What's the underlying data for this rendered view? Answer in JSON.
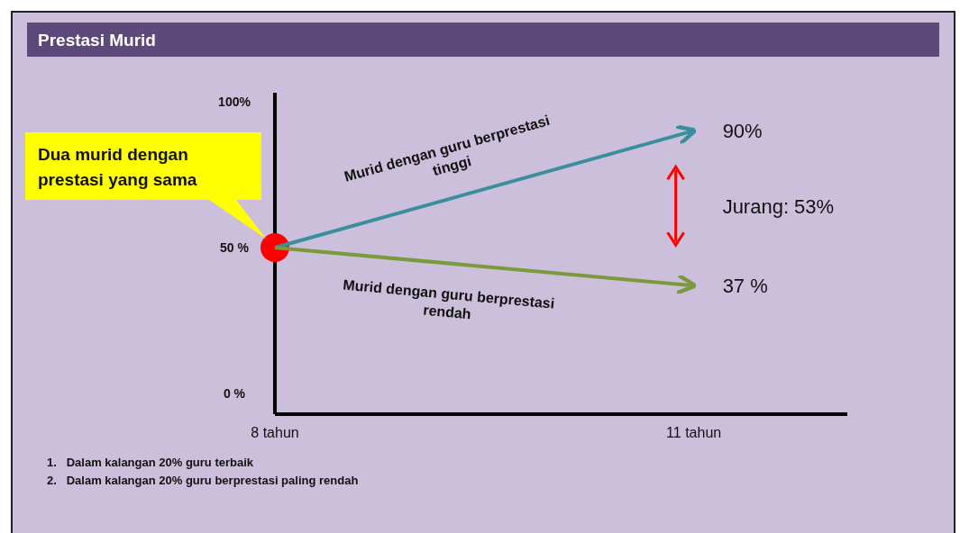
{
  "chart_data": {
    "type": "line",
    "title": "Prestasi Murid",
    "x": [
      8,
      11
    ],
    "xlim": [
      8,
      12.1
    ],
    "xticks": [
      {
        "value": 8,
        "label": "8 tahun"
      },
      {
        "value": 11,
        "label": "11 tahun"
      }
    ],
    "ylim": [
      -7,
      103
    ],
    "yticks": [
      {
        "value": 0,
        "label": "0 %"
      },
      {
        "value": 50,
        "label": "50 %"
      },
      {
        "value": 100,
        "label": "100%"
      }
    ],
    "grid": false,
    "series": [
      {
        "name": "Murid dengan guru berprestasi tinggi",
        "color": "#3a8f9e",
        "values": [
          50,
          90
        ],
        "value_labels": [
          null,
          "90%"
        ]
      },
      {
        "name": "Murid dengan guru berprestasi rendah",
        "color": "#7a9a3c",
        "values": [
          50,
          37
        ],
        "value_labels": [
          null,
          "37 %"
        ]
      },
      {
        "type": "scatter",
        "x": [
          8
        ],
        "color": "#ff0000",
        "values": [
          50
        ]
      }
    ],
    "annotations": [
      "Dua murid dengan prestasi yang sama",
      "Jurang: 53%",
      "1.   Dalam kalangan 20% guru terbaik",
      "2.   Dalam kalangan 20% guru berprestasi paling rendah"
    ]
  }
}
